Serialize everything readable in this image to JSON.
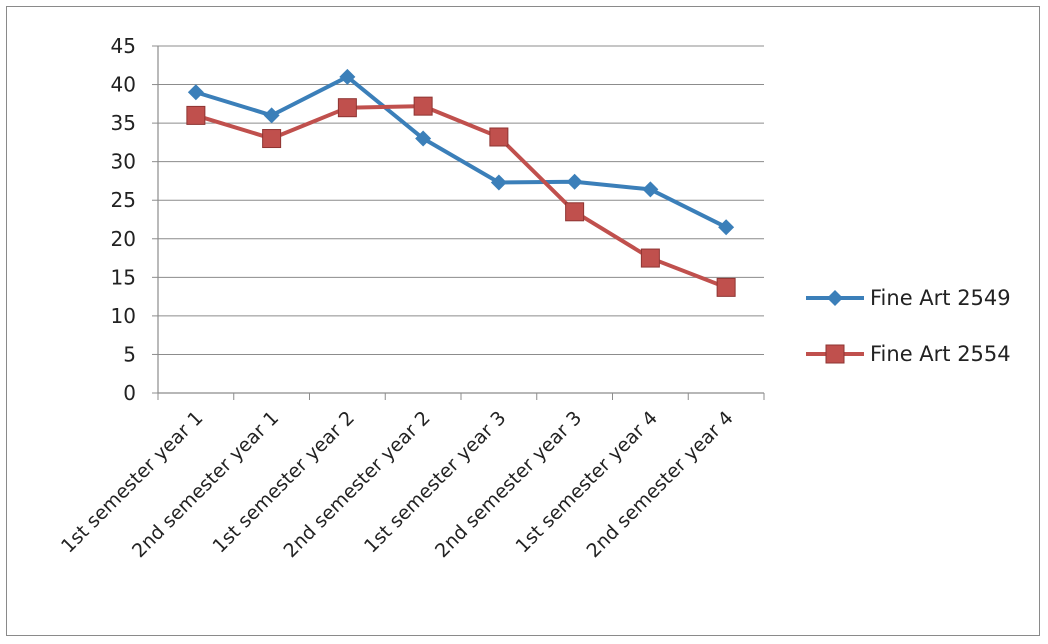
{
  "chart_data": {
    "type": "line",
    "title": "",
    "xlabel": "",
    "ylabel": "",
    "categories": [
      "1st semester year 1",
      "2nd semester year 1",
      "1st semester year 2",
      "2nd semester year 2",
      "1st semester year 3",
      "2nd semester year 3",
      "1st semester year 4",
      "2nd semester year 4"
    ],
    "ylim": [
      0,
      45
    ],
    "yticks": [
      0,
      5,
      10,
      15,
      20,
      25,
      30,
      35,
      40,
      45
    ],
    "grid": true,
    "legend_position": "right",
    "series": [
      {
        "name": "Fine Art 2549",
        "color": "#3b7fb9",
        "marker": "diamond",
        "values": [
          39,
          36,
          41,
          33,
          27.3,
          27.4,
          26.4,
          21.5
        ]
      },
      {
        "name": "Fine Art 2554",
        "color": "#c0504d",
        "marker": "square",
        "values": [
          36,
          33,
          37,
          37.2,
          33.2,
          23.5,
          17.5,
          13.7
        ]
      }
    ]
  }
}
